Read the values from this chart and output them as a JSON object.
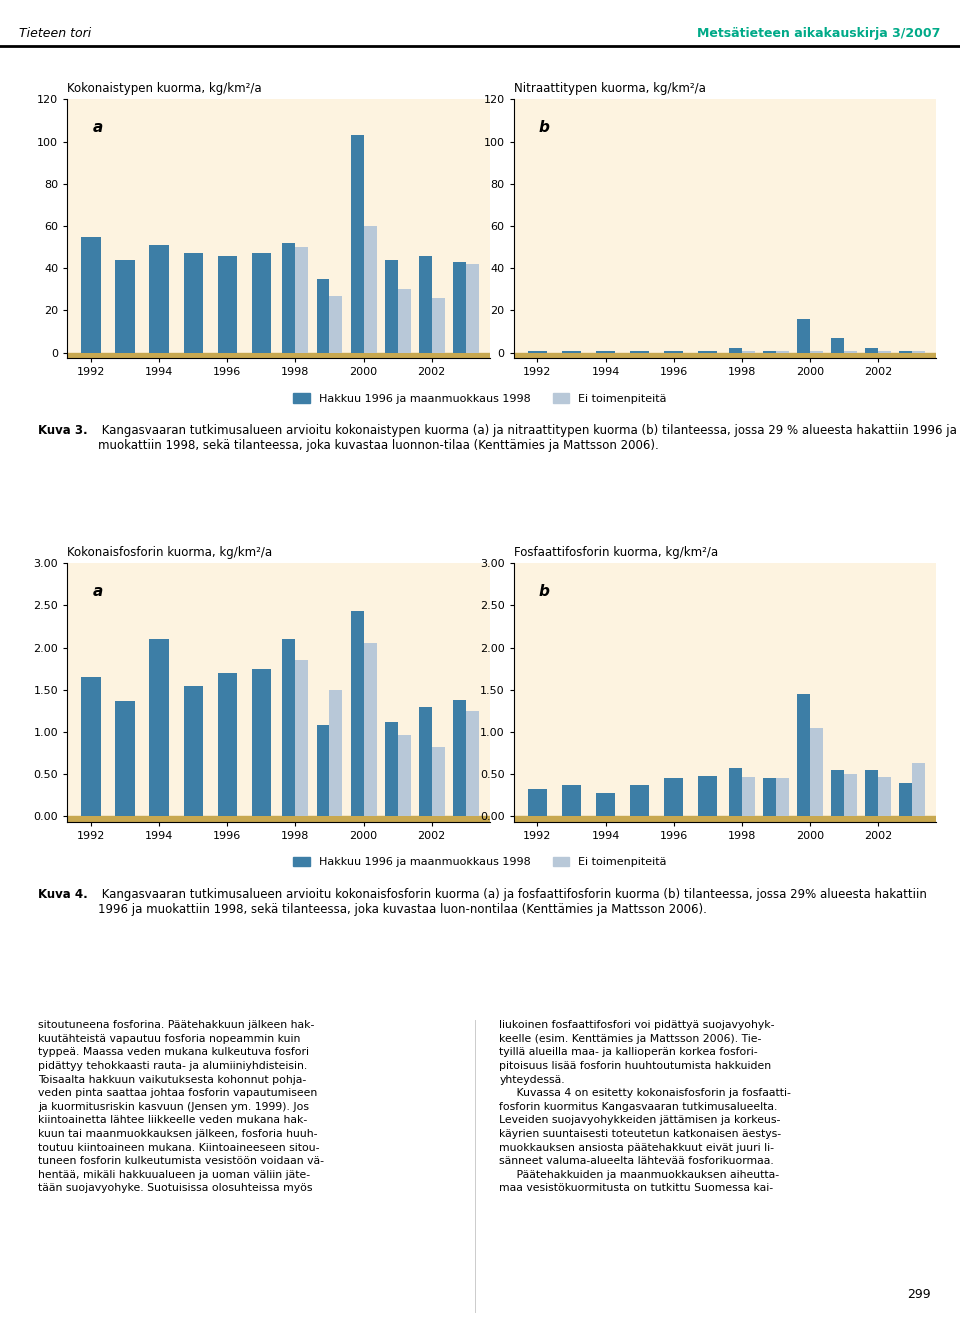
{
  "chart_a1": {
    "title": "Kokonaistypen kuorma, kg/km²/a",
    "label": "a",
    "years": [
      1992,
      1993,
      1994,
      1995,
      1996,
      1997,
      1998,
      1999,
      2000,
      2001,
      2002,
      2003
    ],
    "hakkuu": [
      55,
      44,
      51,
      47,
      46,
      47,
      52,
      35,
      103,
      44,
      46,
      43
    ],
    "ei_toimenpiteita": [
      null,
      null,
      null,
      null,
      null,
      null,
      50,
      27,
      60,
      30,
      26,
      42
    ],
    "ylim": [
      0,
      120
    ],
    "yticks": [
      0,
      20,
      40,
      60,
      80,
      100,
      120
    ]
  },
  "chart_b1": {
    "title": "Nitraattitypen kuorma, kg/km²/a",
    "label": "b",
    "years": [
      1992,
      1993,
      1994,
      1995,
      1996,
      1997,
      1998,
      1999,
      2000,
      2001,
      2002,
      2003
    ],
    "hakkuu": [
      1,
      1,
      1,
      1,
      1,
      1,
      2,
      1,
      16,
      7,
      2,
      1
    ],
    "ei_toimenpiteita": [
      null,
      null,
      null,
      null,
      null,
      null,
      1,
      1,
      1,
      1,
      1,
      1
    ],
    "ylim": [
      0,
      120
    ],
    "yticks": [
      0,
      20,
      40,
      60,
      80,
      100,
      120
    ]
  },
  "chart_a2": {
    "title": "Kokonaisfosforin kuorma, kg/km²/a",
    "label": "a",
    "years": [
      1992,
      1993,
      1994,
      1995,
      1996,
      1997,
      1998,
      1999,
      2000,
      2001,
      2002,
      2003
    ],
    "hakkuu": [
      1.65,
      1.37,
      2.1,
      1.55,
      1.7,
      1.75,
      2.1,
      1.08,
      2.43,
      1.12,
      1.3,
      1.38
    ],
    "ei_toimenpiteita": [
      null,
      null,
      null,
      null,
      null,
      null,
      1.85,
      1.5,
      2.05,
      0.97,
      0.82,
      1.25
    ],
    "ylim": [
      0,
      3.0
    ],
    "yticks": [
      0.0,
      0.5,
      1.0,
      1.5,
      2.0,
      2.5,
      3.0
    ]
  },
  "chart_b2": {
    "title": "Fosfaattifosforin kuorma, kg/km²/a",
    "label": "b",
    "years": [
      1992,
      1993,
      1994,
      1995,
      1996,
      1997,
      1998,
      1999,
      2000,
      2001,
      2002,
      2003
    ],
    "hakkuu": [
      0.32,
      0.37,
      0.28,
      0.37,
      0.45,
      0.48,
      0.57,
      0.45,
      1.45,
      0.55,
      0.55,
      0.4
    ],
    "ei_toimenpiteita": [
      null,
      null,
      null,
      null,
      null,
      null,
      0.47,
      0.45,
      1.05,
      0.5,
      0.47,
      0.63
    ],
    "ylim": [
      0,
      3.0
    ],
    "yticks": [
      0.0,
      0.5,
      1.0,
      1.5,
      2.0,
      2.5,
      3.0
    ]
  },
  "colors": {
    "hakkuu": "#3d7ea6",
    "ei_toimenpiteita": "#b8c8d8",
    "background": "#fdf3e0",
    "bg_outer": "#ffffff",
    "gold_bar": "#c8a850"
  },
  "legend": {
    "hakkuu_label": "Hakkuu 1996 ja maanmuokkaus 1998",
    "ei_label": "Ei toimenpiteitä"
  },
  "caption1_bold": "Kuva 3.",
  "caption1_rest": " Kangasvaaran tutkimusalueen arvioitu kokonaistypen kuorma (a) ja nitraattitypen kuorma (b) tilanteessa, jossa 29 % alueesta hakattiin 1996 ja muokattiin 1998, sekä tilanteessa, joka kuvastaa luonnon-tilaa (Kenttämies ja Mattsson 2006).",
  "caption2_bold": "Kuva 4.",
  "caption2_rest": " Kangasvaaran tutkimusalueen arvioitu kokonaisfosforin kuorma (a) ja fosfaattifosforin kuorma (b) tilanteessa, jossa 29% alueesta hakattiin 1996 ja muokattiin 1998, sekä tilanteessa, joka kuvastaa luon-nontilaa (Kenttämies ja Mattsson 2006).",
  "header_left": "Tieteen tori",
  "header_right": "Metsätieteen aikakauskirja 3/2007",
  "page_number": "299",
  "left_col_text": "sitoutuneena fosforina. Päätehakkuun jälkeen hak-\nkuutähteistä vapautuu fosforia nopeammin kuin\ntyppeä. Maassa veden mukana kulkeutuva fosfori\npidättyy tehokkaasti rauta- ja alumiiniyhdisteisin.\nToisaalta hakkuun vaikutuksesta kohonnut pohja-\nveden pinta saattaa johtaa fosforin vapautumiseen\nja kuormitusriskin kasvuun (Jensen ym. 1999). Jos\nkiintoainetta lähtee liikkeelle veden mukana hak-\nkuun tai maanmuokkauksen jälkeen, fosforia huuh-\ntoutuu kiintoaineen mukana. Kiintoaineeseen sitou-\ntuneen fosforin kulkeutumista vesistöön voidaan vä-\nhentää, mikäli hakkuualueen ja uoman väliin jäte-\ntään suojavyohyke. Suotuisissa olosuhteissa myös",
  "right_col_text": "liukoinen fosfaattifosfori voi pidättyä suojavyohyk-\nkeelle (esim. Kenttämies ja Mattsson 2006). Tie-\ntyillä alueilla maa- ja kallioperän korkea fosfori-\npitoisuus lisää fosforin huuhtoutumista hakkuiden\nyhteydessä.\n     Kuvassa 4 on esitetty kokonaisfosforin ja fosfaatti-\nfosforin kuormitus Kangasvaaran tutkimusalueelta.\nLeveiden suojavyohykkeiden jättämisen ja korkeus-\nkäyrien suuntaisesti toteutetun katkonaisen äestys-\nmuokkauksen ansiosta päätehakkuut eivät juuri li-\nsänneet valuma-alueelta lähtevää fosforikuormaa.\n     Päätehakkuiden ja maanmuokkauksen aiheutta-\nmaa vesistökuormitusta on tutkittu Suomessa kai-"
}
